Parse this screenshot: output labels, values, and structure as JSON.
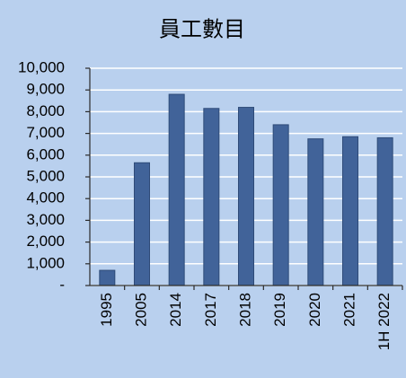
{
  "chart_data": {
    "type": "bar",
    "title": "員工數目",
    "categories": [
      "1995",
      "2005",
      "2014",
      "2017",
      "2018",
      "2019",
      "2020",
      "2021",
      "1H 2022"
    ],
    "values": [
      700,
      5650,
      8800,
      8150,
      8200,
      7400,
      6750,
      6850,
      6800
    ],
    "color": "#416399",
    "ylim": [
      0,
      10000
    ],
    "yticks": [
      {
        "value": 0,
        "label": "-"
      },
      {
        "value": 1000,
        "label": "1,000"
      },
      {
        "value": 2000,
        "label": "2,000"
      },
      {
        "value": 3000,
        "label": "3,000"
      },
      {
        "value": 4000,
        "label": "4,000"
      },
      {
        "value": 5000,
        "label": "5,000"
      },
      {
        "value": 6000,
        "label": "6,000"
      },
      {
        "value": 7000,
        "label": "7,000"
      },
      {
        "value": 8000,
        "label": "8,000"
      },
      {
        "value": 9000,
        "label": "9,000"
      },
      {
        "value": 10000,
        "label": "10,000"
      }
    ],
    "grid": true
  }
}
